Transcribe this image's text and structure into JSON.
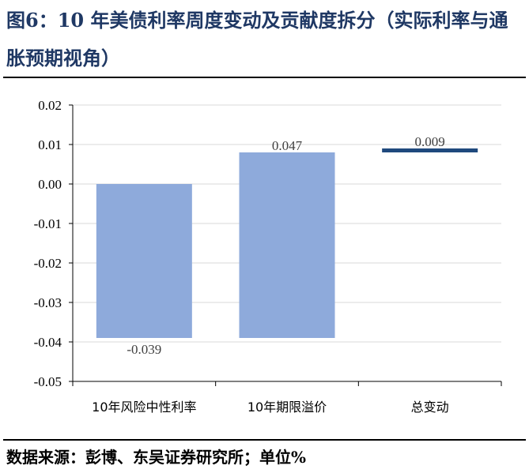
{
  "figure": {
    "title": "图6：10 年美债利率周度变动及贡献度拆分（实际利率与通胀预期视角）",
    "source": "数据来源：彭博、东吴证券研究所；单位%"
  },
  "colors": {
    "title": "#1f3864",
    "component_bar": "#8eaadb",
    "total_bar": "#1f497d",
    "grid": "#d9d9d9",
    "axis": "#000000",
    "label_text": "#404040"
  },
  "chart_data": {
    "type": "bar",
    "subtype": "waterfall",
    "categories": [
      "10年风险中性利率",
      "10年期限溢价",
      "总变动"
    ],
    "values": [
      -0.039,
      0.047,
      0.009
    ],
    "data_labels": [
      "-0.039",
      "0.047",
      "0.009"
    ],
    "total_index": 2,
    "ylim": [
      -0.05,
      0.02
    ],
    "yticks": [
      0.02,
      0.01,
      0.0,
      -0.01,
      -0.02,
      -0.03,
      -0.04,
      -0.05
    ],
    "ytick_labels": [
      "0.02",
      "0.01",
      "0.00",
      "-0.01",
      "-0.02",
      "-0.03",
      "-0.04",
      "-0.05"
    ],
    "grid": true,
    "legend": false,
    "xlabel": "",
    "ylabel": ""
  }
}
